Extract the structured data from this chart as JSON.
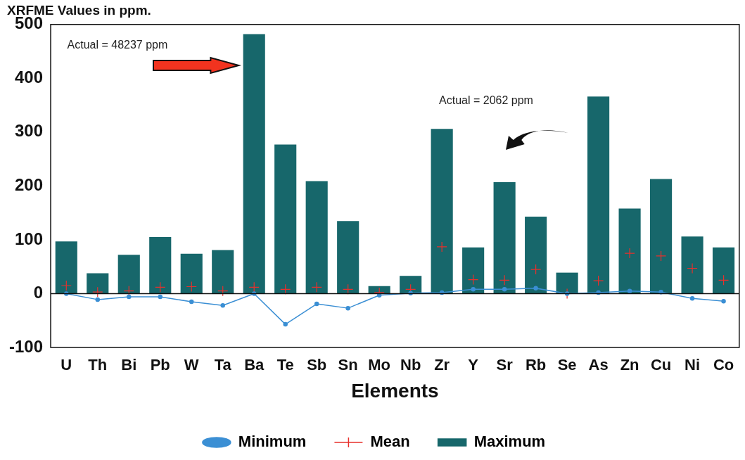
{
  "chart_data": {
    "type": "bar",
    "title": "XRFME Values in ppm.",
    "xlabel": "Elements",
    "categories": [
      "U",
      "Th",
      "Bi",
      "Pb",
      "W",
      "Ta",
      "Ba",
      "Te",
      "Sb",
      "Sn",
      "Mo",
      "Nb",
      "Zr",
      "Y",
      "Sr",
      "Rb",
      "Se",
      "As",
      "Zn",
      "Cu",
      "Ni",
      "Co"
    ],
    "series": [
      {
        "name": "Minimum",
        "type": "line",
        "marker": "circle",
        "color": "#3b8fd4",
        "values": [
          0,
          -11,
          -6,
          -6,
          -15,
          -22,
          0,
          -57,
          -19,
          -27,
          -3,
          1,
          2,
          8,
          8,
          10,
          0,
          2,
          5,
          3,
          -9,
          -14
        ]
      },
      {
        "name": "Mean",
        "type": "scatter",
        "marker": "cross",
        "color": "#e8302c",
        "values": [
          15,
          3,
          5,
          12,
          13,
          5,
          12,
          8,
          12,
          8,
          2,
          8,
          87,
          26,
          25,
          45,
          0,
          24,
          75,
          70,
          47,
          25
        ]
      },
      {
        "name": "Maximum",
        "color": "#17676b",
        "values": [
          97,
          38,
          72,
          105,
          74,
          81,
          482,
          277,
          209,
          135,
          14,
          33,
          306,
          86,
          207,
          143,
          39,
          366,
          158,
          213,
          106,
          86
        ]
      }
    ],
    "ylim": [
      -100,
      500
    ],
    "yticks": [
      -100,
      0,
      100,
      200,
      300,
      400,
      500
    ],
    "legend": "bottom",
    "annotations": [
      "Actual = 48237 ppm",
      "Actual = 2062 ppm"
    ]
  }
}
